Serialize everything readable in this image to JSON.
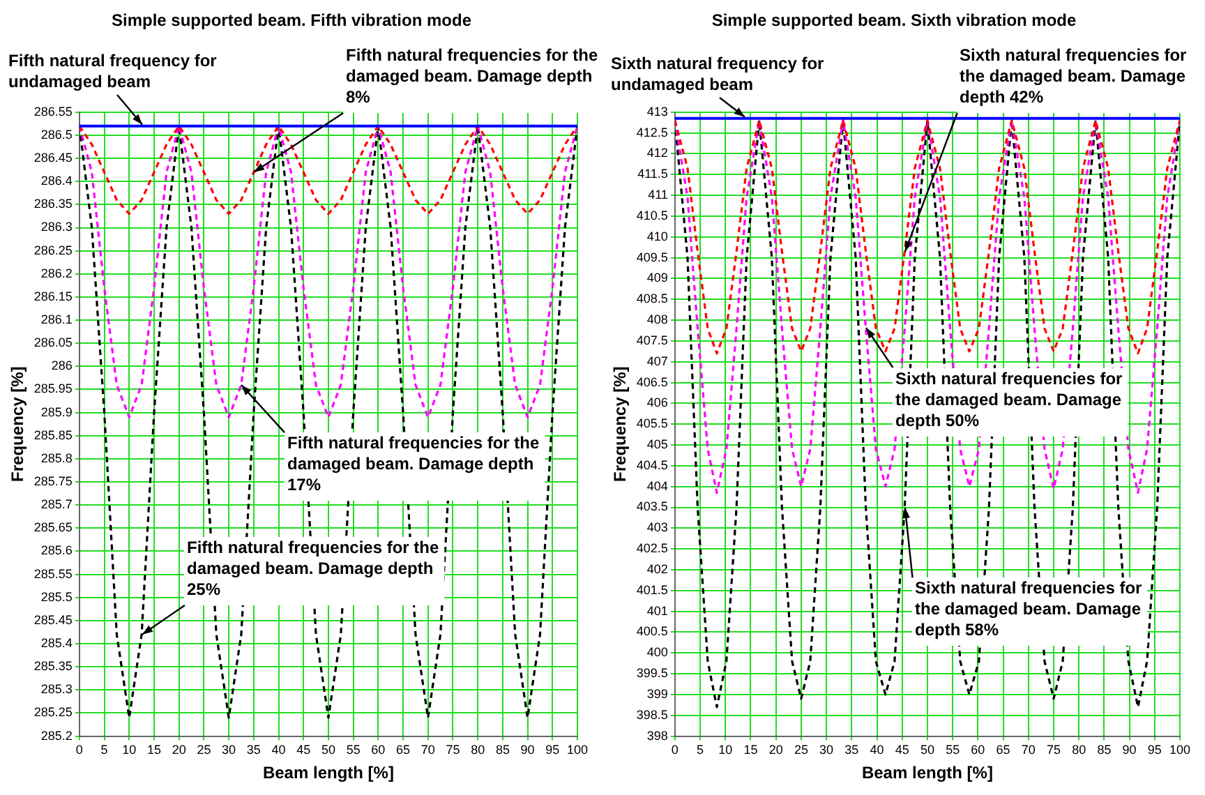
{
  "chart_data": [
    {
      "type": "line",
      "title": "Simple supported beam. Fifth vibration mode",
      "xlabel": "Beam length [%]",
      "ylabel": "Frequency [%]",
      "x": [
        0,
        2.5,
        5,
        7.5,
        10,
        12.5,
        15,
        17.5,
        20,
        22.5,
        25,
        27.5,
        30,
        32.5,
        35,
        37.5,
        40,
        42.5,
        45,
        47.5,
        50,
        52.5,
        55,
        57.5,
        60,
        62.5,
        65,
        67.5,
        70,
        72.5,
        75,
        77.5,
        80,
        82.5,
        85,
        87.5,
        90,
        92.5,
        95,
        97.5,
        100
      ],
      "series": [
        {
          "color": "#ff0000",
          "line_style": "dashed",
          "values": [
            286.52,
            286.48,
            286.42,
            286.36,
            286.33,
            286.36,
            286.42,
            286.48,
            286.52,
            286.48,
            286.42,
            286.36,
            286.33,
            286.36,
            286.42,
            286.48,
            286.52,
            286.48,
            286.42,
            286.36,
            286.33,
            286.36,
            286.42,
            286.48,
            286.52,
            286.48,
            286.42,
            286.36,
            286.33,
            286.36,
            286.42,
            286.48,
            286.52,
            286.48,
            286.42,
            286.36,
            286.33,
            286.36,
            286.42,
            286.48,
            286.52
          ]
        },
        {
          "color": "#ff00ff",
          "line_style": "dashed",
          "values": [
            286.52,
            286.42,
            286.17,
            285.96,
            285.89,
            285.96,
            286.17,
            286.42,
            286.52,
            286.42,
            286.17,
            285.96,
            285.89,
            285.96,
            286.17,
            286.42,
            286.52,
            286.42,
            286.17,
            285.96,
            285.89,
            285.96,
            286.17,
            286.42,
            286.52,
            286.42,
            286.17,
            285.96,
            285.89,
            285.96,
            286.17,
            286.42,
            286.52,
            286.42,
            286.17,
            285.96,
            285.89,
            285.96,
            286.17,
            286.42,
            286.52
          ]
        },
        {
          "color": "#000000",
          "line_style": "dashed",
          "values": [
            286.52,
            286.3,
            285.9,
            285.42,
            285.24,
            285.42,
            285.9,
            286.3,
            286.52,
            286.3,
            285.9,
            285.42,
            285.24,
            285.42,
            285.9,
            286.3,
            286.52,
            286.3,
            285.9,
            285.42,
            285.24,
            285.42,
            285.9,
            286.3,
            286.52,
            286.3,
            285.9,
            285.42,
            285.24,
            285.42,
            285.9,
            286.3,
            286.52,
            286.3,
            285.9,
            285.42,
            285.24,
            285.42,
            285.9,
            286.3,
            286.52
          ]
        }
      ],
      "ref_lines": [
        {
          "axis": "y",
          "value": 286.52,
          "label": "Fifth natural frequency for undamaged beam",
          "color": "#0000ff"
        }
      ],
      "annotations": [
        {
          "text": "Fifth natural frequencies for the damaged beam. Damage depth 8%",
          "x": 35,
          "y": 286.42
        },
        {
          "text": "Fifth natural frequencies for the damaged beam. Damage depth 17%",
          "x": 32.5,
          "y": 285.96
        },
        {
          "text": "Fifth natural frequencies for the damaged beam. Damage depth 25%",
          "x": 12.5,
          "y": 285.42
        }
      ],
      "xlim": [
        0,
        100
      ],
      "xticks": [
        0,
        5,
        10,
        15,
        20,
        25,
        30,
        35,
        40,
        45,
        50,
        55,
        60,
        65,
        70,
        75,
        80,
        85,
        90,
        95,
        100
      ],
      "ylim": [
        285.2,
        286.55
      ],
      "yticks": [
        285.2,
        285.25,
        285.3,
        285.35,
        285.4,
        285.45,
        285.5,
        285.55,
        285.6,
        285.65,
        285.7,
        285.75,
        285.8,
        285.85,
        285.9,
        285.95,
        286,
        286.05,
        286.1,
        286.15,
        286.2,
        286.25,
        286.3,
        286.35,
        286.4,
        286.45,
        286.5,
        286.55
      ],
      "grid": true,
      "legend": false,
      "marker": "none"
    },
    {
      "type": "line",
      "title": "Simple supported beam. Sixth vibration mode",
      "xlabel": "Beam length [%]",
      "ylabel": "Frequency [%]",
      "x": [
        0,
        2.5,
        4.5,
        6.5,
        8.3,
        10.2,
        12.2,
        14.2,
        16.7,
        19.2,
        21.2,
        23.2,
        25,
        26.8,
        28.8,
        30.8,
        33.3,
        35.8,
        37.8,
        39.8,
        41.7,
        43.5,
        45.5,
        47.5,
        50,
        52.5,
        54.5,
        56.5,
        58.3,
        60.2,
        62.2,
        64.2,
        66.7,
        69.2,
        71.2,
        73.2,
        75,
        76.8,
        78.8,
        80.8,
        83.3,
        85.8,
        87.8,
        89.8,
        91.7,
        93.5,
        95.5,
        97.5,
        100
      ],
      "series": [
        {
          "color": "#ff0000",
          "line_style": "dashed",
          "values": [
            412.8,
            411.65,
            409.65,
            407.8,
            407.2,
            407.8,
            409.65,
            411.65,
            412.8,
            411.65,
            409.65,
            407.8,
            407.25,
            407.8,
            409.65,
            411.65,
            412.8,
            411.65,
            409.65,
            407.8,
            407.25,
            407.8,
            409.65,
            411.65,
            412.8,
            411.65,
            409.65,
            407.8,
            407.25,
            407.8,
            409.65,
            411.65,
            412.8,
            411.65,
            409.65,
            407.8,
            407.25,
            407.8,
            409.65,
            411.65,
            412.8,
            411.65,
            409.65,
            407.8,
            407.2,
            407.8,
            409.65,
            411.65,
            412.8
          ]
        },
        {
          "color": "#ff00ff",
          "line_style": "dashed",
          "values": [
            412.8,
            410.95,
            407.8,
            404.9,
            403.85,
            404.9,
            407.8,
            410.95,
            412.8,
            410.95,
            407.8,
            404.9,
            404,
            404.9,
            407.8,
            410.95,
            412.8,
            410.95,
            407.8,
            404.9,
            404,
            404.9,
            407.8,
            410.95,
            412.8,
            410.95,
            407.8,
            404.9,
            404,
            404.9,
            407.8,
            410.95,
            412.8,
            410.95,
            407.8,
            404.9,
            403.95,
            404.9,
            407.8,
            410.95,
            412.8,
            410.95,
            407.8,
            404.9,
            403.85,
            404.9,
            407.8,
            410.95,
            412.8
          ]
        },
        {
          "color": "#000000",
          "line_style": "dashed",
          "values": [
            412.8,
            409.5,
            403.5,
            399.8,
            398.7,
            399.8,
            403.5,
            409.5,
            412.8,
            409.5,
            403.5,
            399.8,
            398.9,
            399.8,
            403.5,
            409.5,
            412.8,
            409.5,
            403.5,
            399.8,
            399,
            399.8,
            403.5,
            409.5,
            412.8,
            409.5,
            403.5,
            399.8,
            399,
            399.8,
            403.5,
            409.5,
            412.8,
            409.5,
            403.5,
            399.8,
            398.9,
            399.8,
            403.5,
            409.5,
            412.8,
            409.5,
            403.5,
            399.8,
            398.7,
            399.8,
            403.5,
            409.5,
            412.8
          ]
        }
      ],
      "ref_lines": [
        {
          "axis": "y",
          "value": 412.85,
          "label": "Sixth natural frequency for undamaged beam",
          "color": "#0000ff"
        }
      ],
      "annotations": [
        {
          "text": "Sixth natural frequencies for the damaged beam. Damage depth 42%",
          "x": 45.5,
          "y": 409.65
        },
        {
          "text": "Sixth natural frequencies for the damaged beam. Damage depth 50%",
          "x": 37.8,
          "y": 407.8
        },
        {
          "text": "Sixth natural frequencies for the damaged beam. Damage depth 58%",
          "x": 45.5,
          "y": 403.5
        }
      ],
      "xlim": [
        0,
        100
      ],
      "xticks": [
        0,
        5,
        10,
        15,
        20,
        25,
        30,
        35,
        40,
        45,
        50,
        55,
        60,
        65,
        70,
        75,
        80,
        85,
        90,
        95,
        100
      ],
      "ylim": [
        398,
        413
      ],
      "yticks": [
        398,
        398.5,
        399,
        399.5,
        400,
        400.5,
        401,
        401.5,
        402,
        402.5,
        403,
        403.5,
        404,
        404.5,
        405,
        405.5,
        406,
        406.5,
        407,
        407.5,
        408,
        408.5,
        409,
        409.5,
        410,
        410.5,
        411,
        411.5,
        412,
        412.5,
        413
      ],
      "grid": true,
      "legend": false,
      "marker": "none"
    }
  ]
}
